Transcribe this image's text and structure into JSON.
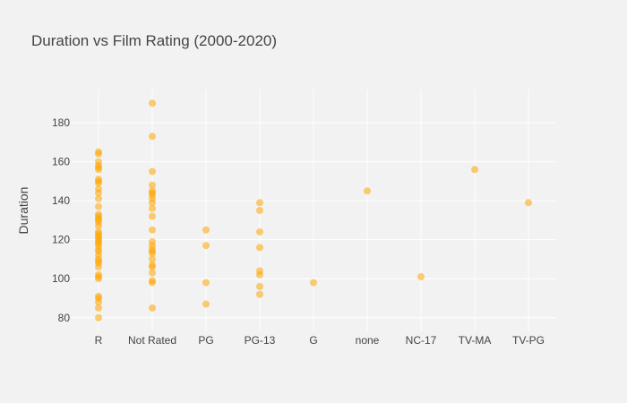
{
  "chart_data": {
    "type": "scatter",
    "title": "Duration vs Film Rating  (2000-2020)",
    "xlabel": "",
    "ylabel": "Duration",
    "categories": [
      "R",
      "Not Rated",
      "PG",
      "PG-13",
      "G",
      "none",
      "NC-17",
      "TV-MA",
      "TV-PG"
    ],
    "yticks": [
      80,
      100,
      120,
      140,
      160,
      180
    ],
    "ylim": [
      73,
      197
    ],
    "grid": true,
    "marker_color": "#ffa500",
    "marker_opacity": 0.55,
    "series": [
      {
        "points": [
          {
            "x": "R",
            "y": 80
          },
          {
            "x": "R",
            "y": 85
          },
          {
            "x": "R",
            "y": 88
          },
          {
            "x": "R",
            "y": 90
          },
          {
            "x": "R",
            "y": 91
          },
          {
            "x": "R",
            "y": 100
          },
          {
            "x": "R",
            "y": 101
          },
          {
            "x": "R",
            "y": 102
          },
          {
            "x": "R",
            "y": 106
          },
          {
            "x": "R",
            "y": 108
          },
          {
            "x": "R",
            "y": 109
          },
          {
            "x": "R",
            "y": 110
          },
          {
            "x": "R",
            "y": 112
          },
          {
            "x": "R",
            "y": 114
          },
          {
            "x": "R",
            "y": 115
          },
          {
            "x": "R",
            "y": 117
          },
          {
            "x": "R",
            "y": 118
          },
          {
            "x": "R",
            "y": 119
          },
          {
            "x": "R",
            "y": 120
          },
          {
            "x": "R",
            "y": 121
          },
          {
            "x": "R",
            "y": 122
          },
          {
            "x": "R",
            "y": 123
          },
          {
            "x": "R",
            "y": 124
          },
          {
            "x": "R",
            "y": 127
          },
          {
            "x": "R",
            "y": 129
          },
          {
            "x": "R",
            "y": 130
          },
          {
            "x": "R",
            "y": 131
          },
          {
            "x": "R",
            "y": 132
          },
          {
            "x": "R",
            "y": 133
          },
          {
            "x": "R",
            "y": 137
          },
          {
            "x": "R",
            "y": 141
          },
          {
            "x": "R",
            "y": 144
          },
          {
            "x": "R",
            "y": 146
          },
          {
            "x": "R",
            "y": 149
          },
          {
            "x": "R",
            "y": 150
          },
          {
            "x": "R",
            "y": 151
          },
          {
            "x": "R",
            "y": 156
          },
          {
            "x": "R",
            "y": 157
          },
          {
            "x": "R",
            "y": 158
          },
          {
            "x": "R",
            "y": 160
          },
          {
            "x": "R",
            "y": 164
          },
          {
            "x": "R",
            "y": 165
          },
          {
            "x": "Not Rated",
            "y": 85
          },
          {
            "x": "Not Rated",
            "y": 98
          },
          {
            "x": "Not Rated",
            "y": 99
          },
          {
            "x": "Not Rated",
            "y": 103
          },
          {
            "x": "Not Rated",
            "y": 106
          },
          {
            "x": "Not Rated",
            "y": 107
          },
          {
            "x": "Not Rated",
            "y": 110
          },
          {
            "x": "Not Rated",
            "y": 113
          },
          {
            "x": "Not Rated",
            "y": 114
          },
          {
            "x": "Not Rated",
            "y": 115
          },
          {
            "x": "Not Rated",
            "y": 117
          },
          {
            "x": "Not Rated",
            "y": 119
          },
          {
            "x": "Not Rated",
            "y": 125
          },
          {
            "x": "Not Rated",
            "y": 132
          },
          {
            "x": "Not Rated",
            "y": 136
          },
          {
            "x": "Not Rated",
            "y": 139
          },
          {
            "x": "Not Rated",
            "y": 141
          },
          {
            "x": "Not Rated",
            "y": 143
          },
          {
            "x": "Not Rated",
            "y": 144
          },
          {
            "x": "Not Rated",
            "y": 145
          },
          {
            "x": "Not Rated",
            "y": 148
          },
          {
            "x": "Not Rated",
            "y": 155
          },
          {
            "x": "Not Rated",
            "y": 173
          },
          {
            "x": "Not Rated",
            "y": 190
          },
          {
            "x": "PG",
            "y": 87
          },
          {
            "x": "PG",
            "y": 98
          },
          {
            "x": "PG",
            "y": 117
          },
          {
            "x": "PG",
            "y": 125
          },
          {
            "x": "PG-13",
            "y": 92
          },
          {
            "x": "PG-13",
            "y": 96
          },
          {
            "x": "PG-13",
            "y": 102
          },
          {
            "x": "PG-13",
            "y": 104
          },
          {
            "x": "PG-13",
            "y": 116
          },
          {
            "x": "PG-13",
            "y": 124
          },
          {
            "x": "PG-13",
            "y": 135
          },
          {
            "x": "PG-13",
            "y": 139
          },
          {
            "x": "G",
            "y": 98
          },
          {
            "x": "none",
            "y": 145
          },
          {
            "x": "NC-17",
            "y": 101
          },
          {
            "x": "TV-MA",
            "y": 156
          },
          {
            "x": "TV-PG",
            "y": 139
          }
        ]
      }
    ]
  }
}
